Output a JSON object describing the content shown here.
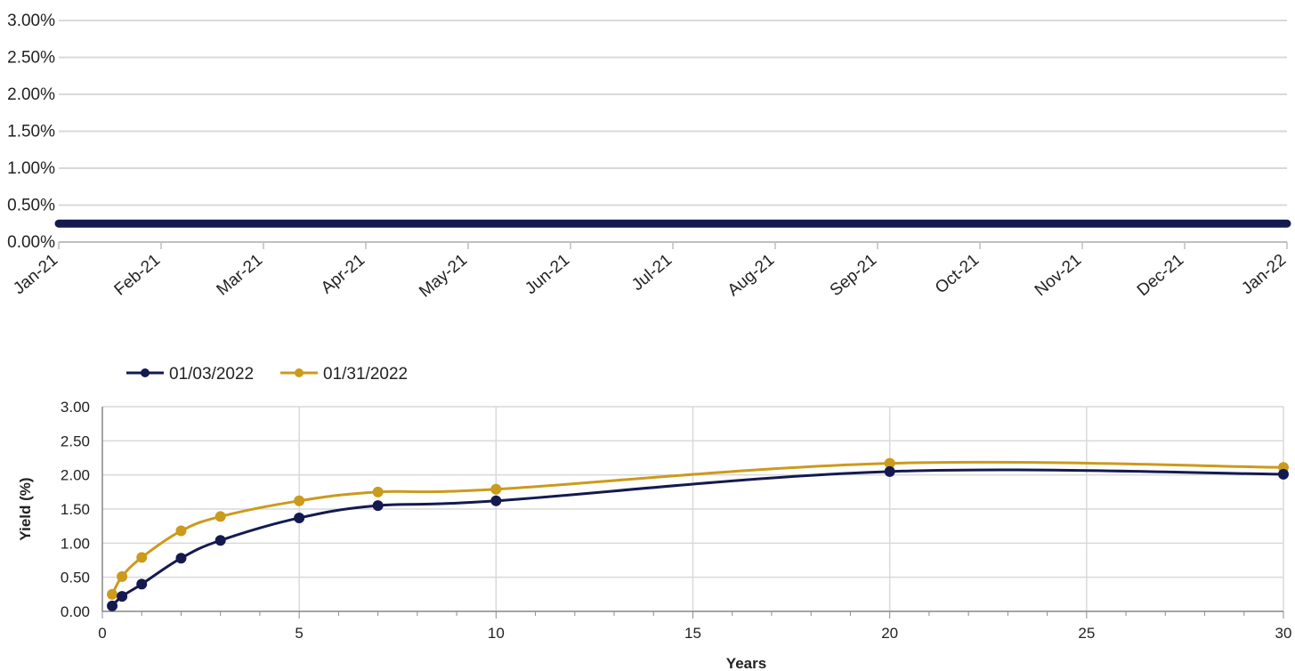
{
  "chart_data": [
    {
      "type": "line",
      "title": "",
      "x": [
        "Jan-21",
        "Feb-21",
        "Mar-21",
        "Apr-21",
        "May-21",
        "Jun-21",
        "Jul-21",
        "Aug-21",
        "Sep-21",
        "Oct-21",
        "Nov-21",
        "Dec-21",
        "Jan-22"
      ],
      "y_ticks": [
        "3.00%",
        "2.50%",
        "2.00%",
        "1.50%",
        "1.00%",
        "0.50%",
        "0.00%"
      ],
      "ylim": [
        0,
        3
      ],
      "grid": true,
      "legend": false,
      "series": [
        {
          "values": [
            0.25,
            0.25,
            0.25,
            0.25,
            0.25,
            0.25,
            0.25,
            0.25,
            0.25,
            0.25,
            0.25,
            0.25,
            0.25
          ],
          "color": "#141a4f"
        }
      ]
    },
    {
      "type": "line",
      "title": "",
      "xlabel": "Years",
      "ylabel": "Yield (%)",
      "x_ticks": [
        "0",
        "5",
        "10",
        "15",
        "20",
        "25",
        "30"
      ],
      "y_ticks": [
        "3.00",
        "2.50",
        "2.00",
        "1.50",
        "1.00",
        "0.50",
        "0.00"
      ],
      "xlim": [
        0,
        30
      ],
      "ylim": [
        0,
        3
      ],
      "grid": true,
      "legend_position": "top-left",
      "series": [
        {
          "name": "01/03/2022",
          "color": "#141a4f",
          "x": [
            0.25,
            0.5,
            1,
            2,
            3,
            5,
            7,
            10,
            20,
            30
          ],
          "values": [
            0.08,
            0.22,
            0.4,
            0.78,
            1.04,
            1.37,
            1.55,
            1.62,
            2.05,
            2.01
          ]
        },
        {
          "name": "01/31/2022",
          "color": "#cc9a1c",
          "x": [
            0.25,
            0.5,
            1,
            2,
            3,
            5,
            7,
            10,
            20,
            30
          ],
          "values": [
            0.25,
            0.51,
            0.79,
            1.18,
            1.39,
            1.62,
            1.75,
            1.79,
            2.17,
            2.11
          ]
        }
      ]
    }
  ]
}
